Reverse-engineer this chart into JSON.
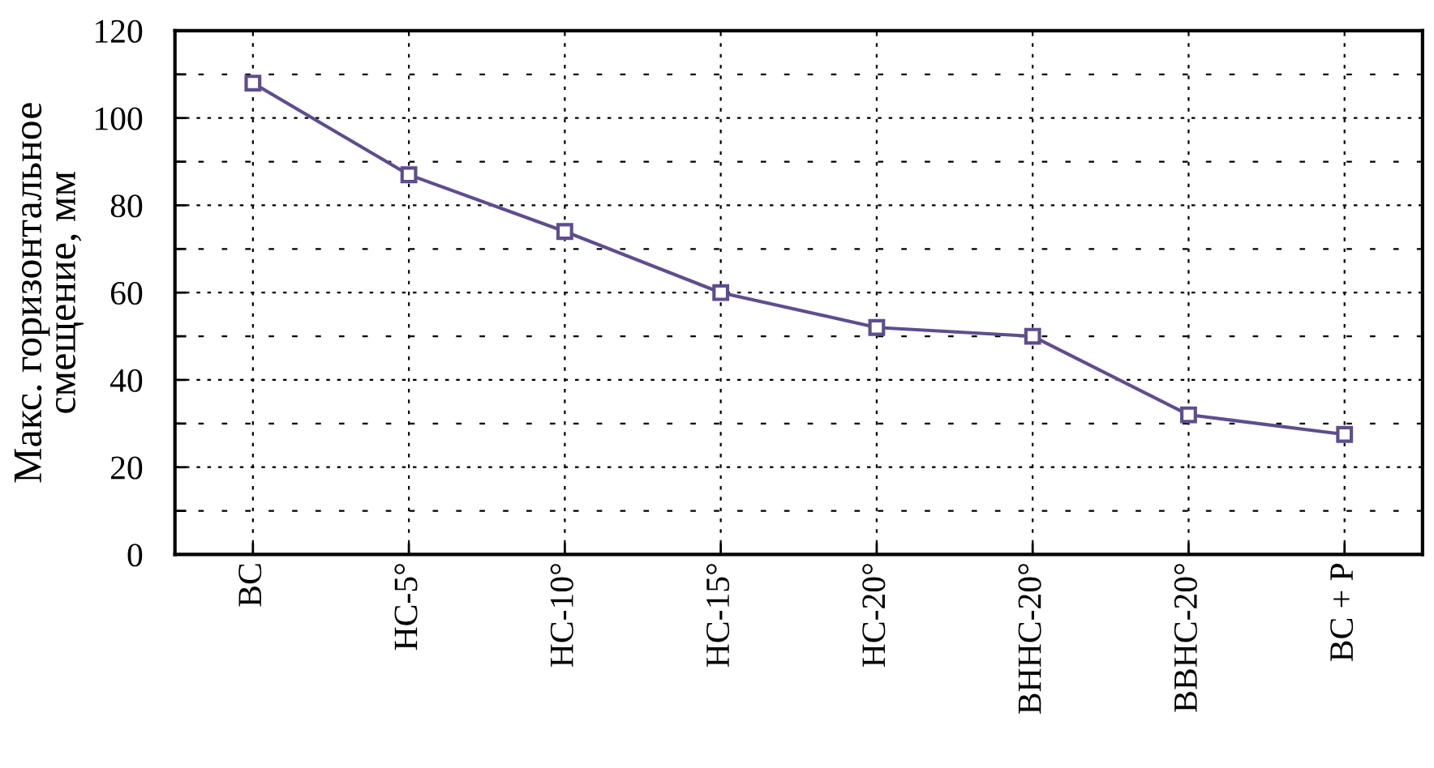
{
  "chart_data": {
    "type": "line",
    "ylabel": "Макс. горизонтальное\nсмещение, мм",
    "categories": [
      "ВС",
      "НС-5°",
      "НС-10°",
      "НС-15°",
      "НС-20°",
      "ВННС-20°",
      "ВВНС-20°",
      "ВС + Р"
    ],
    "series": [
      {
        "color": "#5e4d8f",
        "values": [
          108,
          87,
          74,
          60,
          52,
          50,
          32,
          27.5
        ]
      }
    ],
    "ylim": [
      0,
      120
    ],
    "yticks": [
      0,
      {
        "value": 10,
        "label": null
      },
      20,
      {
        "value": 30,
        "label": null
      },
      40,
      {
        "value": 50,
        "label": null
      },
      60,
      {
        "value": 70,
        "label": null
      },
      80,
      {
        "value": 90,
        "label": null
      },
      100,
      {
        "value": 110,
        "label": null
      },
      120
    ],
    "grid": true,
    "marker": "square",
    "line_style": "solid",
    "legend": false
  }
}
